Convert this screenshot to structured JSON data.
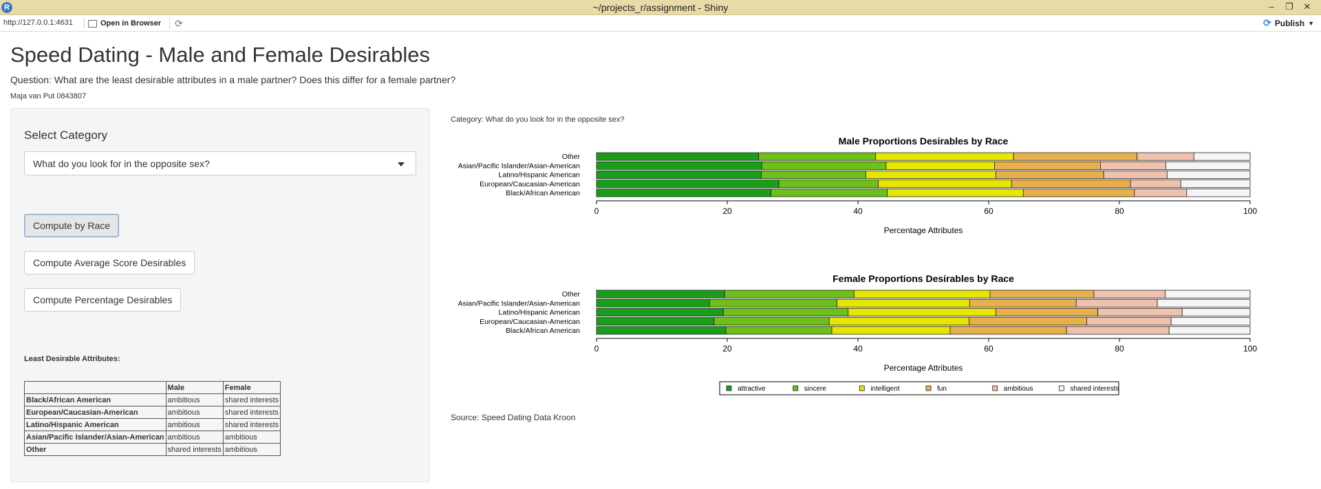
{
  "window": {
    "title": "~/projects_r/assignment - Shiny",
    "app_icon": "R"
  },
  "addressbar": {
    "url": "http://127.0.0.1:4631",
    "open_in_browser": "Open in Browser",
    "publish": "Publish"
  },
  "page": {
    "title": "Speed Dating - Male and Female Desirables",
    "question": "Question: What are the least desirable attributes in a male partner? Does this differ for a female partner?",
    "author": "Maja van Put 0843807"
  },
  "sidebar": {
    "select_label": "Select Category",
    "select_value": "What do you look for in the opposite sex?",
    "buttons": {
      "race": "Compute by Race",
      "average": "Compute Average Score Desirables",
      "percentage": "Compute Percentage Desirables"
    },
    "least_title": "Least Desirable Attributes:",
    "table": {
      "headers": [
        "",
        "Male",
        "Female"
      ],
      "rows": [
        [
          "Black/African American",
          "ambitious",
          "shared interests"
        ],
        [
          "European/Caucasian-American",
          "ambitious",
          "shared interests"
        ],
        [
          "Latino/Hispanic American",
          "ambitious",
          "shared interests"
        ],
        [
          "Asian/Pacific Islander/Asian-American",
          "ambitious",
          "ambitious"
        ],
        [
          "Other",
          "shared interests",
          "ambitious"
        ]
      ]
    }
  },
  "main": {
    "category_label": "Category: What do you look for in the opposite sex?",
    "source": "Source: Speed Dating Data Kroon"
  },
  "chart_data": [
    {
      "type": "bar",
      "stacked": true,
      "orientation": "horizontal",
      "title": "Male Proportions Desirables by Race",
      "xlabel": "Percentage Attributes",
      "xlim": [
        0,
        100
      ],
      "xticks": [
        0,
        20,
        40,
        60,
        80,
        100
      ],
      "categories": [
        "Other",
        "Asian/Pacific Islander/Asian-American",
        "Latino/Hispanic American",
        "European/Caucasian-American",
        "Black/African American"
      ],
      "series": [
        {
          "name": "attractive",
          "color": "#1a9e1a",
          "values": [
            24.8,
            25.3,
            25.2,
            27.9,
            26.7
          ]
        },
        {
          "name": "sincere",
          "color": "#6cc017",
          "values": [
            17.9,
            19.0,
            16.0,
            15.2,
            17.8
          ]
        },
        {
          "name": "intelligent",
          "color": "#e6e600",
          "values": [
            21.1,
            16.6,
            19.9,
            20.4,
            20.8
          ]
        },
        {
          "name": "fun",
          "color": "#e8b04b",
          "values": [
            18.9,
            16.2,
            16.5,
            18.2,
            17.0
          ]
        },
        {
          "name": "ambitious",
          "color": "#f0c2ad",
          "values": [
            8.7,
            10.0,
            9.7,
            7.7,
            8.0
          ]
        },
        {
          "name": "shared interests",
          "color": "#f5f5f5",
          "values": [
            8.6,
            12.9,
            12.7,
            10.6,
            9.7
          ]
        }
      ]
    },
    {
      "type": "bar",
      "stacked": true,
      "orientation": "horizontal",
      "title": "Female Proportions Desirables by Race",
      "xlabel": "Percentage Attributes",
      "xlim": [
        0,
        100
      ],
      "xticks": [
        0,
        20,
        40,
        60,
        80,
        100
      ],
      "categories": [
        "Other",
        "Asian/Pacific Islander/Asian-American",
        "Latino/Hispanic American",
        "European/Caucasian-American",
        "Black/African American"
      ],
      "series": [
        {
          "name": "attractive",
          "color": "#1a9e1a",
          "values": [
            19.6,
            17.3,
            19.4,
            18.0,
            19.8
          ]
        },
        {
          "name": "sincere",
          "color": "#6cc017",
          "values": [
            19.8,
            19.5,
            19.1,
            17.6,
            16.2
          ]
        },
        {
          "name": "intelligent",
          "color": "#e6e600",
          "values": [
            20.8,
            20.3,
            22.6,
            21.4,
            18.1
          ]
        },
        {
          "name": "fun",
          "color": "#e8b04b",
          "values": [
            15.9,
            16.3,
            15.6,
            18.0,
            17.8
          ]
        },
        {
          "name": "ambitious",
          "color": "#f0c2ad",
          "values": [
            10.9,
            12.4,
            12.9,
            12.9,
            15.7
          ]
        },
        {
          "name": "shared interests",
          "color": "#f5f5f5",
          "values": [
            13.0,
            14.2,
            10.4,
            12.1,
            12.4
          ]
        }
      ]
    }
  ],
  "legend": {
    "placement": "bottom",
    "items": [
      "attractive",
      "sincere",
      "intelligent",
      "fun",
      "ambitious",
      "shared interests"
    ]
  }
}
